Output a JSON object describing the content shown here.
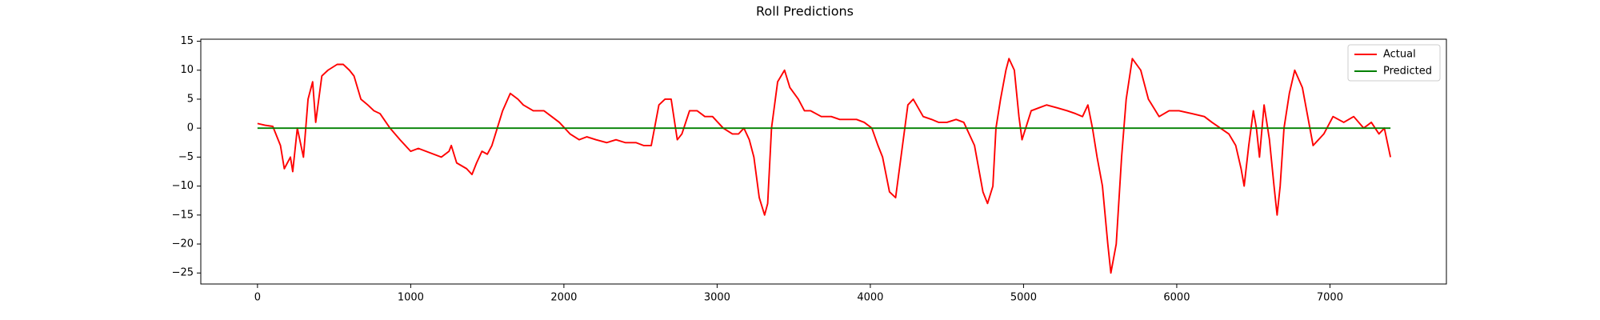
{
  "chart_data": {
    "type": "line",
    "title": "Roll Predictions",
    "series": [
      {
        "name": "Actual",
        "color": "#ff0000",
        "x": [
          0,
          50,
          100,
          150,
          175,
          215,
          230,
          260,
          300,
          330,
          360,
          380,
          420,
          460,
          520,
          560,
          600,
          630,
          675,
          720,
          760,
          800,
          865,
          930,
          1000,
          1050,
          1100,
          1150,
          1200,
          1250,
          1265,
          1300,
          1365,
          1400,
          1430,
          1465,
          1500,
          1530,
          1565,
          1600,
          1650,
          1700,
          1735,
          1800,
          1870,
          1920,
          1970,
          2040,
          2100,
          2150,
          2210,
          2280,
          2340,
          2400,
          2470,
          2520,
          2570,
          2620,
          2660,
          2700,
          2740,
          2770,
          2820,
          2870,
          2920,
          2970,
          3040,
          3100,
          3140,
          3175,
          3210,
          3240,
          3275,
          3310,
          3330,
          3355,
          3395,
          3440,
          3475,
          3530,
          3570,
          3610,
          3680,
          3745,
          3800,
          3860,
          3910,
          3960,
          4010,
          4050,
          4080,
          4125,
          4165,
          4200,
          4245,
          4280,
          4345,
          4400,
          4445,
          4500,
          4560,
          4610,
          4680,
          4735,
          4765,
          4800,
          4820,
          4850,
          4885,
          4905,
          4940,
          4970,
          4990,
          5050,
          5100,
          5150,
          5220,
          5285,
          5340,
          5385,
          5420,
          5450,
          5480,
          5515,
          5550,
          5570,
          5605,
          5640,
          5670,
          5710,
          5765,
          5815,
          5885,
          5950,
          6015,
          6100,
          6180,
          6230,
          6285,
          6340,
          6385,
          6420,
          6440,
          6470,
          6500,
          6520,
          6540,
          6570,
          6605,
          6635,
          6655,
          6675,
          6700,
          6735,
          6770,
          6820,
          6855,
          6890,
          6960,
          7020,
          7090,
          7155,
          7220,
          7270,
          7320,
          7355,
          7395
        ],
        "values": [
          0.8,
          0.5,
          0.3,
          -3,
          -7,
          -5,
          -7.5,
          0,
          -5,
          5,
          8,
          1,
          9,
          10,
          11,
          11,
          10,
          9,
          5,
          4,
          3,
          2.5,
          0,
          -2,
          -4,
          -3.5,
          -4,
          -4.5,
          -5,
          -4,
          -3,
          -6,
          -7,
          -8,
          -6,
          -4,
          -4.5,
          -3,
          0,
          3,
          6,
          5,
          4,
          3,
          3,
          2,
          1,
          -1,
          -2,
          -1.5,
          -2,
          -2.5,
          -2,
          -2.5,
          -2.5,
          -3,
          -3,
          4,
          5,
          5,
          -2,
          -1,
          3,
          3,
          2,
          2,
          0,
          -1,
          -1,
          0,
          -2,
          -5,
          -12,
          -15,
          -13,
          0,
          8,
          10,
          7,
          5,
          3,
          3,
          2,
          2,
          1.5,
          1.5,
          1.5,
          1,
          0,
          -3,
          -5,
          -11,
          -12,
          -5,
          4,
          5,
          2,
          1.5,
          1,
          1,
          1.5,
          1,
          -3,
          -11,
          -13,
          -10,
          0,
          5,
          10,
          12,
          10,
          2,
          -2,
          3,
          3.5,
          4,
          3.5,
          3,
          2.5,
          2,
          4,
          0,
          -5,
          -10,
          -20,
          -25,
          -20,
          -5,
          5,
          12,
          10,
          5,
          2,
          3,
          3,
          2.5,
          2,
          1,
          0,
          -1,
          -3,
          -7,
          -10,
          -3,
          3,
          0,
          -5,
          4,
          -2,
          -10,
          -15,
          -10,
          0,
          6,
          10,
          7,
          2,
          -3,
          -1,
          2,
          1,
          2,
          0,
          1,
          -1,
          0,
          -5
        ]
      },
      {
        "name": "Predicted",
        "color": "#008000",
        "x": [
          0,
          7395
        ],
        "values": [
          0,
          0
        ]
      }
    ],
    "xlim": [
      -370,
      7760
    ],
    "ylim": [
      -26.9,
      15.35
    ],
    "xticks": [
      0,
      1000,
      2000,
      3000,
      4000,
      5000,
      6000,
      7000
    ],
    "yticks": [
      {
        "value": -25,
        "label": "−25"
      },
      {
        "value": -20,
        "label": "−20"
      },
      {
        "value": -15,
        "label": "−15"
      },
      {
        "value": -10,
        "label": "−10"
      },
      {
        "value": -5,
        "label": "−5"
      },
      0,
      5,
      10,
      15
    ],
    "legend": "upper right",
    "grid": false
  }
}
